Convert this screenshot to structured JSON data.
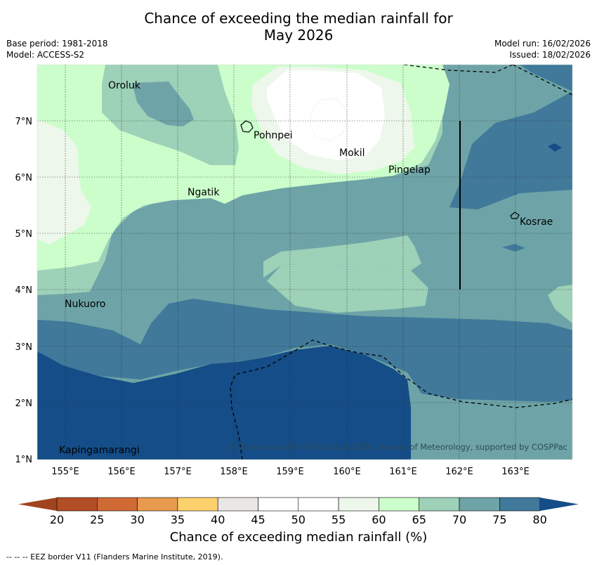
{
  "title_line1": "Chance of exceeding the median rainfall for",
  "title_line2": "May 2026",
  "meta": {
    "base_period": "Base period: 1981-2018",
    "model": "Model: ACCESS-S2",
    "model_run": "Model run: 16/02/2026",
    "issued": "Issued: 18/02/2026"
  },
  "map": {
    "lon_ticks": [
      "155°E",
      "156°E",
      "157°E",
      "158°E",
      "159°E",
      "160°E",
      "161°E",
      "162°E",
      "163°E"
    ],
    "lat_ticks": [
      "7°N",
      "6°N",
      "5°N",
      "4°N",
      "3°N",
      "2°N",
      "1°N"
    ],
    "places": [
      "Oroluk",
      "Pohnpei",
      "Mokil",
      "Pingelap",
      "Ngatik",
      "Kosrae",
      "Nukuoro",
      "Kapingamarangi"
    ],
    "copyright": "© Commonwealth of Australia 2026, Bureau of Meteorology, supported by COSPPac"
  },
  "colorbar": {
    "ticks": [
      "20",
      "25",
      "30",
      "35",
      "40",
      "45",
      "50",
      "55",
      "60",
      "65",
      "70",
      "75",
      "80"
    ],
    "colors": [
      "#b34d25",
      "#d06a35",
      "#e89b4e",
      "#fdd06e",
      "#e9e7e4",
      "#ffffff",
      "#ffffff",
      "#eef7ec",
      "#ccfecb",
      "#9dd1b8",
      "#6ea4a7",
      "#40799a",
      "#144d87"
    ],
    "title": "Chance of exceeding median rainfall (%)"
  },
  "footnote": "--  --  -- EEZ border V11 (Flanders Marine Institute, 2019)."
}
